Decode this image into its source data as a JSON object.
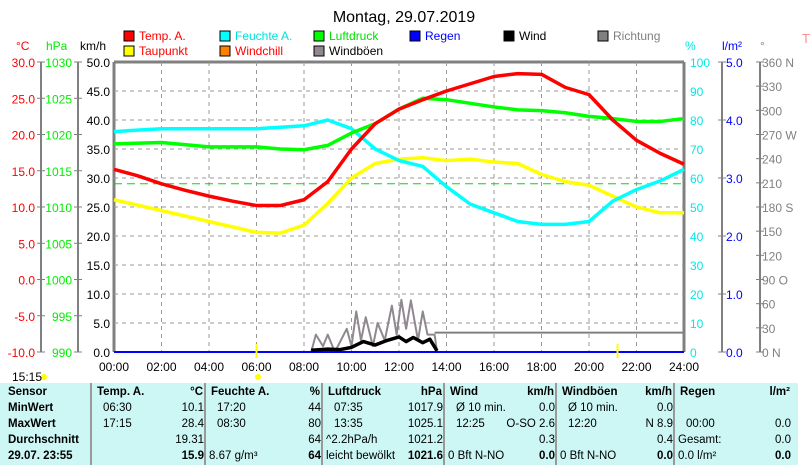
{
  "title": "Montag, 29.07.2019",
  "colors": {
    "temp": "#ff0000",
    "dew": "#ffff00",
    "hum": "#00ffff",
    "wchill": "#ff8000",
    "press": "#00ff00",
    "gust": "#908890",
    "rain": "#0000ff",
    "wind": "#000000",
    "dir": "#808080"
  },
  "legend": [
    {
      "label": "Temp. A.",
      "color": "#ff0000",
      "text_color": "#ff0000"
    },
    {
      "label": "Taupunkt",
      "color": "#ffff00",
      "text_color": "#ff0000"
    },
    {
      "label": "Feuchte A.",
      "color": "#00ffff",
      "text_color": "#00e0e0"
    },
    {
      "label": "Windchill",
      "color": "#ff8000",
      "text_color": "#ff0000"
    },
    {
      "label": "Luftdruck",
      "color": "#00ff00",
      "text_color": "#00dd00"
    },
    {
      "label": "Windböen",
      "color": "#908890",
      "text_color": "#000000"
    },
    {
      "label": "Regen",
      "color": "#0000ff",
      "text_color": "#0000ff"
    },
    {
      "label": "Wind",
      "color": "#000000",
      "text_color": "#000000"
    },
    {
      "label": "Richtung",
      "color": "#808080",
      "text_color": "#808080"
    }
  ],
  "chart_data": {
    "type": "line",
    "title": "Montag, 29.07.2019",
    "xlabel": "",
    "x_ticks": [
      "00:00",
      "02:00",
      "04:00",
      "06:00",
      "08:00",
      "10:00",
      "12:00",
      "14:00",
      "16:00",
      "18:00",
      "20:00",
      "22:00",
      "24:00"
    ],
    "xlim": [
      0,
      24
    ],
    "axes": {
      "temp": {
        "unit": "°C",
        "range": [
          -10,
          30
        ],
        "ticks": [
          "30.0",
          "25.0",
          "20.0",
          "15.0",
          "10.0",
          "5.0",
          "0.0",
          "-5.0",
          "-10.0"
        ]
      },
      "press": {
        "unit": "hPa",
        "range": [
          990,
          1030
        ],
        "ticks": [
          "1030",
          "1025",
          "1020",
          "1015",
          "1010",
          "1005",
          "1000",
          "995",
          "990"
        ]
      },
      "wind": {
        "unit": "km/h",
        "range": [
          0,
          50
        ],
        "ticks": [
          "50.0",
          "45.0",
          "40.0",
          "35.0",
          "30.0",
          "25.0",
          "20.0",
          "15.0",
          "10.0",
          "5.0",
          "0.0"
        ]
      },
      "hum": {
        "unit": "%",
        "range": [
          0,
          100
        ],
        "ticks": [
          "100",
          "90",
          "80",
          "70",
          "60",
          "50",
          "40",
          "30",
          "20",
          "10",
          "0"
        ]
      },
      "rain": {
        "unit": "l/m²",
        "range": [
          0,
          5
        ],
        "ticks": [
          "5.0",
          "4.0",
          "3.0",
          "2.0",
          "1.0",
          "0.0"
        ]
      },
      "dir": {
        "unit": "°",
        "range": [
          0,
          360
        ],
        "ticks": [
          "360 N",
          "330",
          "300",
          "270 W",
          "240",
          "210",
          "180 S",
          "150",
          "120",
          "90  O",
          "60",
          "30",
          "0    N"
        ]
      }
    },
    "series": [
      {
        "name": "Temp. A.",
        "axis": "temp",
        "color": "#ff0000",
        "points": [
          [
            0,
            15.2
          ],
          [
            1,
            14.3
          ],
          [
            2,
            13.2
          ],
          [
            3,
            12.3
          ],
          [
            4,
            11.5
          ],
          [
            5,
            10.8
          ],
          [
            6,
            10.2
          ],
          [
            7,
            10.2
          ],
          [
            8,
            11
          ],
          [
            9,
            13.5
          ],
          [
            10,
            18
          ],
          [
            11,
            21.5
          ],
          [
            12,
            23.5
          ],
          [
            13,
            24.8
          ],
          [
            14,
            26
          ],
          [
            15,
            27
          ],
          [
            16,
            28
          ],
          [
            17,
            28.4
          ],
          [
            18,
            28.3
          ],
          [
            19,
            26.5
          ],
          [
            20,
            25.5
          ],
          [
            21,
            22
          ],
          [
            22,
            19.2
          ],
          [
            23,
            17.4
          ],
          [
            24,
            15.9
          ]
        ]
      },
      {
        "name": "Taupunkt",
        "axis": "temp",
        "color": "#ffff00",
        "points": [
          [
            0,
            11
          ],
          [
            2,
            9.5
          ],
          [
            4,
            8
          ],
          [
            6,
            6.5
          ],
          [
            7,
            6.4
          ],
          [
            8,
            7.5
          ],
          [
            9,
            10.5
          ],
          [
            10,
            14
          ],
          [
            11,
            16
          ],
          [
            12,
            16.6
          ],
          [
            13,
            16.8
          ],
          [
            14,
            16.4
          ],
          [
            15,
            16.6
          ],
          [
            16,
            16.2
          ],
          [
            17,
            16
          ],
          [
            18,
            14.5
          ],
          [
            19,
            13.5
          ],
          [
            20,
            13
          ],
          [
            21,
            11.5
          ],
          [
            22,
            10
          ],
          [
            23,
            9.2
          ],
          [
            24,
            9.2
          ]
        ]
      },
      {
        "name": "Feuchte A.",
        "axis": "hum",
        "color": "#00ffff",
        "points": [
          [
            0,
            76
          ],
          [
            2,
            77
          ],
          [
            4,
            77
          ],
          [
            6,
            77
          ],
          [
            8,
            78
          ],
          [
            9,
            80
          ],
          [
            10,
            77
          ],
          [
            11,
            70
          ],
          [
            12,
            66
          ],
          [
            13,
            64
          ],
          [
            14,
            57
          ],
          [
            15,
            51
          ],
          [
            16,
            48
          ],
          [
            17,
            45
          ],
          [
            18,
            44
          ],
          [
            19,
            44
          ],
          [
            20,
            45
          ],
          [
            21,
            52
          ],
          [
            22,
            56
          ],
          [
            23,
            59
          ],
          [
            24,
            63
          ]
        ]
      },
      {
        "name": "Luftdruck",
        "axis": "press",
        "color": "#00ff00",
        "points": [
          [
            0,
            1018.7
          ],
          [
            2,
            1018.9
          ],
          [
            4,
            1018.3
          ],
          [
            6,
            1018.3
          ],
          [
            7,
            1018
          ],
          [
            8,
            1017.9
          ],
          [
            9,
            1018.5
          ],
          [
            10,
            1020.2
          ],
          [
            11,
            1021.5
          ],
          [
            12,
            1023.5
          ],
          [
            13,
            1025
          ],
          [
            14,
            1024.8
          ],
          [
            15,
            1024.3
          ],
          [
            16,
            1023.8
          ],
          [
            17,
            1023.4
          ],
          [
            18,
            1023.3
          ],
          [
            19,
            1023
          ],
          [
            20,
            1022.5
          ],
          [
            21,
            1022.2
          ],
          [
            22,
            1021.8
          ],
          [
            23,
            1021.8
          ],
          [
            24,
            1022.2
          ]
        ]
      },
      {
        "name": "Windböen",
        "axis": "wind",
        "color": "#908890",
        "points": [
          [
            8.3,
            0
          ],
          [
            8.5,
            3
          ],
          [
            8.8,
            1
          ],
          [
            9,
            3
          ],
          [
            9.3,
            0
          ],
          [
            9.8,
            4
          ],
          [
            10,
            1
          ],
          [
            10.2,
            7
          ],
          [
            10.4,
            2
          ],
          [
            10.6,
            6
          ],
          [
            10.9,
            1
          ],
          [
            11.1,
            5
          ],
          [
            11.4,
            2
          ],
          [
            11.7,
            8
          ],
          [
            11.9,
            3
          ],
          [
            12.1,
            9
          ],
          [
            12.3,
            4
          ],
          [
            12.5,
            8.9
          ],
          [
            12.8,
            2
          ],
          [
            13,
            7
          ],
          [
            13.2,
            3
          ],
          [
            13.5,
            3
          ],
          [
            13.6,
            0
          ]
        ]
      },
      {
        "name": "Wind",
        "axis": "wind",
        "color": "#000000",
        "points": [
          [
            8.3,
            0.3
          ],
          [
            9,
            0.5
          ],
          [
            9.5,
            0.4
          ],
          [
            10,
            0.8
          ],
          [
            10.5,
            1.8
          ],
          [
            11,
            1.2
          ],
          [
            11.5,
            2.0
          ],
          [
            12,
            2.6
          ],
          [
            12.3,
            1.8
          ],
          [
            12.6,
            2.5
          ],
          [
            13,
            1.6
          ],
          [
            13.3,
            2.2
          ],
          [
            13.6,
            0.2
          ]
        ]
      },
      {
        "name": "Regen",
        "axis": "rain",
        "color": "#0000ff",
        "points": [
          [
            0,
            0
          ],
          [
            24,
            0
          ]
        ]
      },
      {
        "name": "Richtung",
        "axis": "dir",
        "color": "#808080",
        "points": [
          [
            13.5,
            24
          ],
          [
            24,
            24
          ]
        ]
      }
    ],
    "reference_line": {
      "axis": "press",
      "value": 1013.2,
      "color": "#00dd00"
    }
  },
  "sunrise_label": "15:15",
  "right_partial_label": "T",
  "table": {
    "headers": [
      [
        "Sensor",
        ""
      ],
      [
        "Temp. A.",
        "°C"
      ],
      [
        "Feuchte A.",
        "%"
      ],
      [
        "Luftdruck",
        "hPa"
      ],
      [
        "Wind",
        "km/h"
      ],
      [
        "Windböen",
        "km/h"
      ],
      [
        "Regen",
        "l/m²"
      ]
    ],
    "rows": [
      {
        "label": "MinWert",
        "cells": [
          [
            "06:30",
            "10.1"
          ],
          [
            "17:20",
            "44"
          ],
          [
            "07:35",
            "1017.9"
          ],
          [
            "Ø 10 min.",
            "0.0"
          ],
          [
            "Ø 10 min.",
            "0.0"
          ],
          [
            "",
            ""
          ]
        ]
      },
      {
        "label": "MaxWert",
        "cells": [
          [
            "17:15",
            "28.4"
          ],
          [
            "08:30",
            "80"
          ],
          [
            "13:35",
            "1025.1"
          ],
          [
            "12:25",
            "O-SO 2.6"
          ],
          [
            "12:20",
            "N 8.9"
          ],
          [
            "00:00",
            "0.0"
          ]
        ]
      },
      {
        "label": "Durchschnitt",
        "cells": [
          [
            "",
            "19.31"
          ],
          [
            "",
            "64"
          ],
          [
            "^2.2hPa/h",
            "1021.2"
          ],
          [
            "",
            "0.3"
          ],
          [
            "",
            "0.4"
          ],
          [
            "Gesamt:",
            "0.0"
          ]
        ]
      },
      {
        "label": "29.07. 23:55",
        "cells": [
          [
            "",
            "15.9"
          ],
          [
            "8.67 g/m³",
            "64"
          ],
          [
            "leicht bewölkt",
            "1021.6"
          ],
          [
            "0 Bft N-NO",
            "0.0"
          ],
          [
            "0 Bft N-NO",
            "0.0"
          ],
          [
            "0.0 l/m²",
            "0.0"
          ]
        ]
      }
    ]
  }
}
